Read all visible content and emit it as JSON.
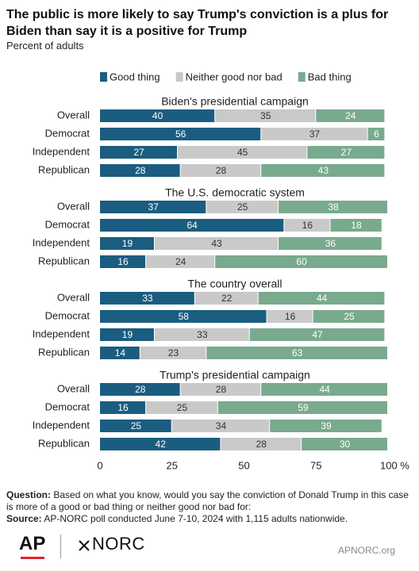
{
  "chart_data": {
    "type": "bar",
    "orientation": "horizontal",
    "stacked": true,
    "title": "The public is more likely to say Trump's conviction is a plus for Biden than say it is a positive for Trump",
    "subtitle": "Percent of adults",
    "groups": [
      "Biden's presidential campaign",
      "The U.S. democratic system",
      "The country overall",
      "Trump's presidential campaign"
    ],
    "categories": [
      [
        "Overall",
        "Democrat",
        "Independent",
        "Republican"
      ],
      [
        "Overall",
        "Democrat",
        "Independent",
        "Republican"
      ],
      [
        "Overall",
        "Democrat",
        "Independent",
        "Republican"
      ],
      [
        "Overall",
        "Democrat",
        "Independent",
        "Republican"
      ]
    ],
    "series": [
      {
        "name": "Good thing",
        "color": "#1b5d80",
        "values": [
          [
            40,
            56,
            27,
            28
          ],
          [
            37,
            64,
            19,
            16
          ],
          [
            33,
            58,
            19,
            14
          ],
          [
            28,
            16,
            25,
            42
          ]
        ]
      },
      {
        "name": "Neither good nor bad",
        "color": "#c9c9c9",
        "values": [
          [
            35,
            37,
            45,
            28
          ],
          [
            25,
            16,
            43,
            24
          ],
          [
            22,
            16,
            33,
            23
          ],
          [
            28,
            25,
            34,
            28
          ]
        ]
      },
      {
        "name": "Bad thing",
        "color": "#79aa8e",
        "values": [
          [
            24,
            6,
            27,
            43
          ],
          [
            38,
            18,
            36,
            60
          ],
          [
            44,
            25,
            47,
            63
          ],
          [
            44,
            59,
            39,
            30
          ]
        ]
      }
    ],
    "xlim": [
      0,
      100
    ],
    "xticks": [
      0,
      25,
      50,
      75,
      {
        "value": 100,
        "label": "100 %"
      }
    ],
    "grid": false,
    "legend": "top"
  },
  "footer": {
    "question_label": "Question:",
    "question": "Based on what you know, would you say the conviction of Donald Trump in this case is more of a good or bad thing or neither good nor bad for:",
    "source_label": "Source:",
    "source": "AP-NORC poll conducted June 7-10, 2024 with 1,115 adults nationwide.",
    "logo_ap": "AP",
    "logo_norc": "NORC",
    "site": "APNORC.org"
  }
}
